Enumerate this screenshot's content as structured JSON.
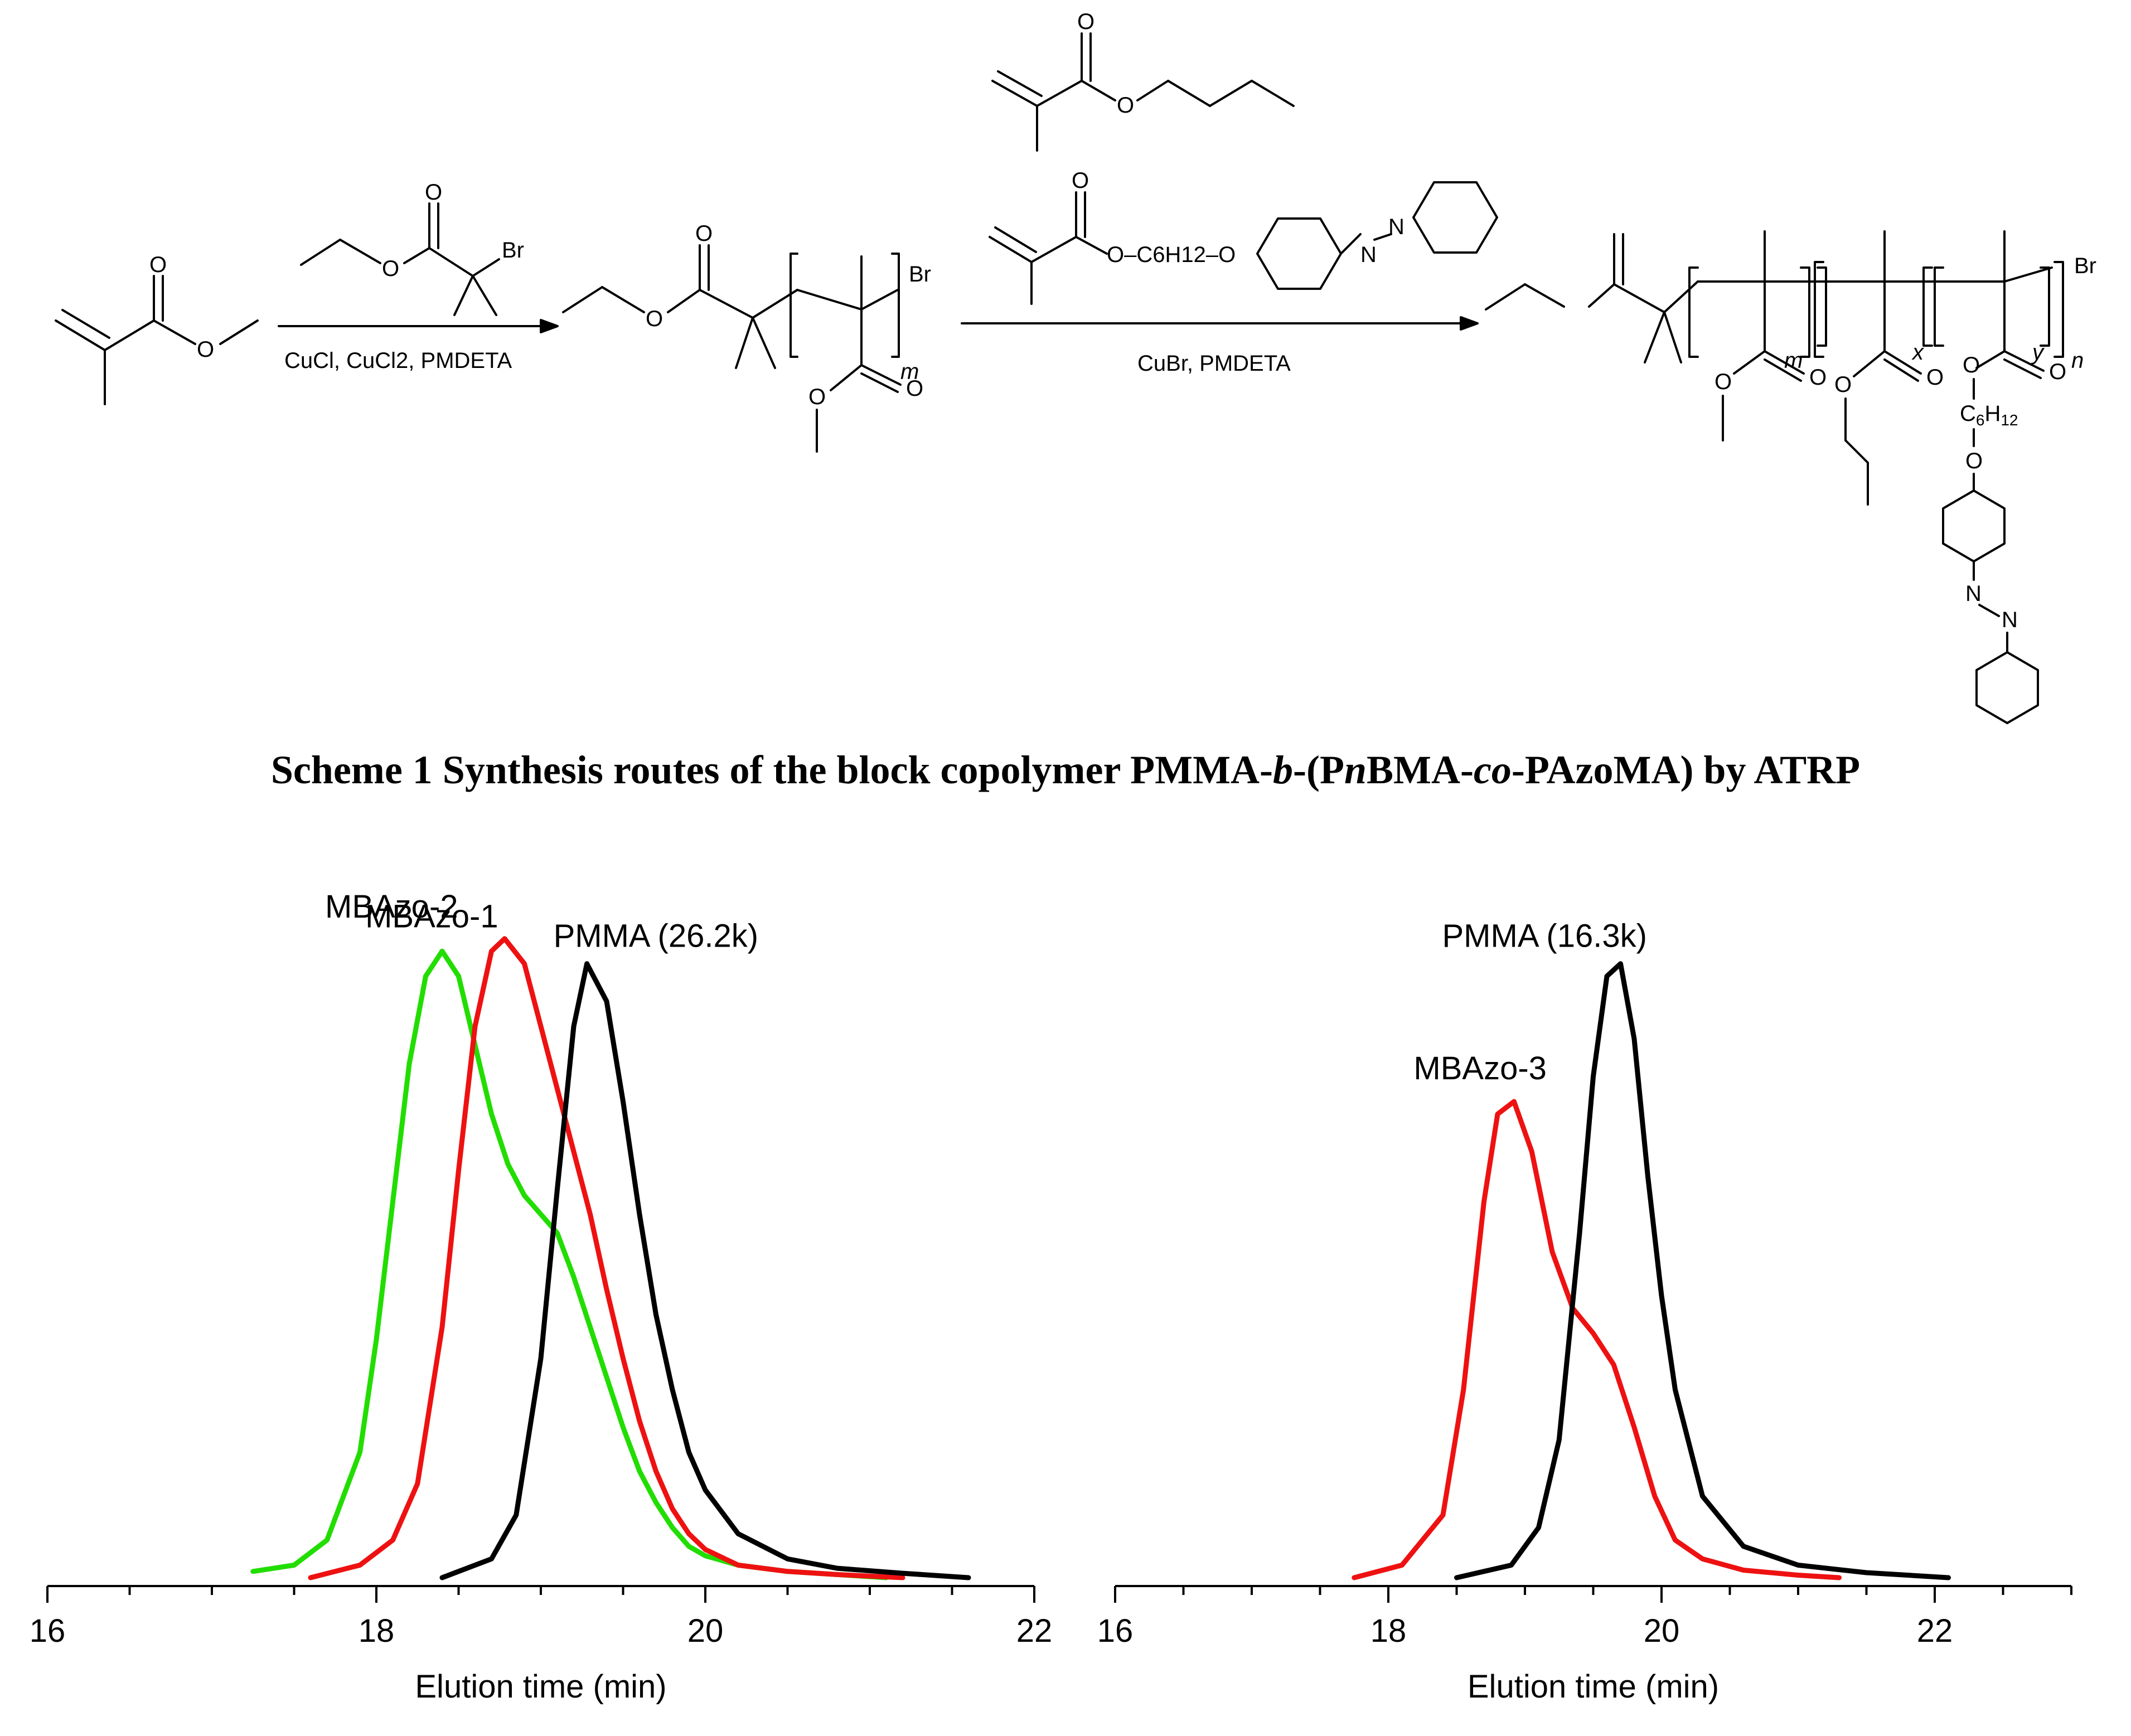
{
  "scheme": {
    "step1_reagents": "CuCl, CuCl2, PMDETA",
    "step2_reagents": "CuBr, PMDETA",
    "atoms": {
      "O": "O",
      "Br": "Br",
      "N": "N",
      "linker": "O–C6H12–O"
    },
    "subscripts": {
      "m": "m",
      "x": "x",
      "y": "y",
      "n": "n"
    }
  },
  "caption": {
    "prefix": "Scheme 1  Synthesis routes of the block copolymer PMMA-",
    "b": "b",
    "mid1": "-(P",
    "n": "n",
    "mid2": "BMA-",
    "co": "co",
    "suffix": "-PAzoMA) by ATRP"
  },
  "chart_data": [
    {
      "type": "line",
      "title": "",
      "xlabel": "Elution time (min)",
      "ylabel": "",
      "xlim": [
        16,
        22
      ],
      "ylim": [
        0,
        1.05
      ],
      "xticks": [
        16,
        18,
        20,
        22
      ],
      "xtick_labels": [
        "16",
        "18",
        "20",
        "22"
      ],
      "grid": false,
      "yaxis_shown": false,
      "series": [
        {
          "name": "MBAzo-2",
          "color": "#22dd00",
          "x": [
            17.25,
            17.5,
            17.7,
            17.9,
            18.0,
            18.1,
            18.2,
            18.3,
            18.4,
            18.5,
            18.6,
            18.7,
            18.8,
            18.9,
            19.0,
            19.1,
            19.2,
            19.3,
            19.4,
            19.5,
            19.6,
            19.7,
            19.8,
            19.9,
            20.0,
            20.2,
            20.5,
            20.8,
            21.1
          ],
          "values": [
            0.01,
            0.02,
            0.06,
            0.2,
            0.38,
            0.6,
            0.82,
            0.96,
            1.0,
            0.96,
            0.85,
            0.74,
            0.66,
            0.61,
            0.58,
            0.55,
            0.48,
            0.4,
            0.32,
            0.24,
            0.17,
            0.12,
            0.08,
            0.05,
            0.035,
            0.02,
            0.01,
            0.005,
            0.0
          ]
        },
        {
          "name": "MBAzo-1",
          "color": "#ee1111",
          "x": [
            17.6,
            17.9,
            18.1,
            18.25,
            18.4,
            18.5,
            18.6,
            18.7,
            18.78,
            18.9,
            19.0,
            19.1,
            19.2,
            19.3,
            19.4,
            19.5,
            19.6,
            19.7,
            19.8,
            19.9,
            20.0,
            20.2,
            20.5,
            20.8,
            21.2
          ],
          "values": [
            0.0,
            0.02,
            0.06,
            0.15,
            0.4,
            0.65,
            0.88,
            1.0,
            1.02,
            0.98,
            0.88,
            0.78,
            0.68,
            0.58,
            0.46,
            0.35,
            0.25,
            0.17,
            0.11,
            0.07,
            0.045,
            0.02,
            0.01,
            0.005,
            0.0
          ]
        },
        {
          "name": "PMMA (26.2k)",
          "color": "#000000",
          "x": [
            18.4,
            18.7,
            18.85,
            19.0,
            19.1,
            19.2,
            19.28,
            19.4,
            19.5,
            19.6,
            19.7,
            19.8,
            19.9,
            20.0,
            20.2,
            20.5,
            20.8,
            21.2,
            21.6
          ],
          "values": [
            0.0,
            0.03,
            0.1,
            0.35,
            0.62,
            0.88,
            0.98,
            0.92,
            0.76,
            0.58,
            0.42,
            0.3,
            0.2,
            0.14,
            0.07,
            0.03,
            0.015,
            0.007,
            0.0
          ]
        }
      ]
    },
    {
      "type": "line",
      "title": "",
      "xlabel": "Elution time (min)",
      "ylabel": "",
      "xlim": [
        16,
        23
      ],
      "ylim": [
        0,
        1.05
      ],
      "xticks": [
        16,
        18,
        20,
        22
      ],
      "xtick_labels": [
        "16",
        "18",
        "20",
        "22"
      ],
      "grid": false,
      "yaxis_shown": false,
      "series": [
        {
          "name": "MBAzo-3",
          "color": "#ee1111",
          "x": [
            17.75,
            18.1,
            18.4,
            18.55,
            18.7,
            18.8,
            18.92,
            19.05,
            19.2,
            19.35,
            19.5,
            19.65,
            19.8,
            19.95,
            20.1,
            20.3,
            20.6,
            21.0,
            21.3
          ],
          "values": [
            0.0,
            0.02,
            0.1,
            0.3,
            0.6,
            0.74,
            0.76,
            0.68,
            0.52,
            0.43,
            0.39,
            0.34,
            0.24,
            0.13,
            0.06,
            0.03,
            0.012,
            0.004,
            0.0
          ]
        },
        {
          "name": "PMMA (16.3k)",
          "color": "#000000",
          "x": [
            18.5,
            18.9,
            19.1,
            19.25,
            19.4,
            19.5,
            19.6,
            19.7,
            19.8,
            19.9,
            20.0,
            20.1,
            20.3,
            20.6,
            21.0,
            21.5,
            22.1
          ],
          "values": [
            0.0,
            0.02,
            0.08,
            0.22,
            0.55,
            0.8,
            0.96,
            0.98,
            0.86,
            0.64,
            0.45,
            0.3,
            0.13,
            0.05,
            0.02,
            0.008,
            0.0
          ]
        }
      ]
    }
  ]
}
